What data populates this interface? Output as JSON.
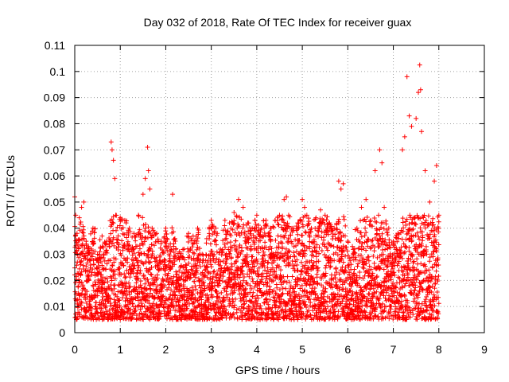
{
  "chart_data": {
    "type": "scatter",
    "title": "Day 032 of 2018, Rate Of TEC Index for receiver guax",
    "xlabel": "GPS time / hours",
    "ylabel": "ROTI / TECUs",
    "xlim": [
      0,
      9
    ],
    "ylim": [
      0,
      0.11
    ],
    "xticks": [
      "0",
      "1",
      "2",
      "3",
      "4",
      "5",
      "6",
      "7",
      "8",
      "9"
    ],
    "yticks": [
      "0",
      "0.01",
      "0.02",
      "0.03",
      "0.04",
      "0.05",
      "0.06",
      "0.07",
      "0.08",
      "0.09",
      "0.1",
      "0.11"
    ],
    "grid": true,
    "marker": "+",
    "color": "#ff0000",
    "series": [
      {
        "name": "ROTI",
        "description": "Dense band of ROTI values 0.005-0.045 TECU over 0-8 h; listed points below are representative peaks and band samples",
        "x": [
          0.0,
          0.02,
          0.05,
          0.1,
          0.15,
          0.2,
          0.25,
          0.3,
          0.4,
          0.5,
          0.6,
          0.7,
          0.8,
          0.82,
          0.85,
          0.88,
          0.9,
          1.0,
          1.1,
          1.2,
          1.3,
          1.4,
          1.5,
          1.55,
          1.6,
          1.62,
          1.65,
          1.7,
          1.8,
          1.9,
          2.0,
          2.1,
          2.15,
          2.2,
          2.3,
          2.4,
          2.5,
          2.6,
          2.7,
          2.8,
          2.9,
          3.0,
          3.1,
          3.2,
          3.3,
          3.4,
          3.5,
          3.6,
          3.7,
          3.8,
          3.9,
          4.0,
          4.1,
          4.2,
          4.3,
          4.4,
          4.5,
          4.6,
          4.65,
          4.7,
          4.8,
          4.9,
          5.0,
          5.05,
          5.1,
          5.2,
          5.3,
          5.4,
          5.5,
          5.6,
          5.7,
          5.8,
          5.85,
          5.9,
          6.0,
          6.1,
          6.2,
          6.3,
          6.4,
          6.5,
          6.6,
          6.7,
          6.75,
          6.8,
          6.9,
          7.0,
          7.1,
          7.2,
          7.25,
          7.3,
          7.35,
          7.4,
          7.5,
          7.55,
          7.58,
          7.6,
          7.62,
          7.7,
          7.8,
          7.9,
          7.95,
          8.0
        ],
        "y": [
          0.052,
          0.045,
          0.038,
          0.044,
          0.048,
          0.05,
          0.035,
          0.033,
          0.04,
          0.03,
          0.037,
          0.035,
          0.073,
          0.07,
          0.066,
          0.059,
          0.045,
          0.044,
          0.043,
          0.04,
          0.038,
          0.045,
          0.053,
          0.059,
          0.071,
          0.062,
          0.055,
          0.04,
          0.038,
          0.035,
          0.04,
          0.034,
          0.053,
          0.036,
          0.031,
          0.032,
          0.038,
          0.037,
          0.04,
          0.03,
          0.036,
          0.043,
          0.04,
          0.032,
          0.043,
          0.042,
          0.046,
          0.051,
          0.048,
          0.042,
          0.04,
          0.045,
          0.04,
          0.043,
          0.04,
          0.043,
          0.045,
          0.051,
          0.052,
          0.045,
          0.04,
          0.042,
          0.051,
          0.048,
          0.045,
          0.04,
          0.044,
          0.047,
          0.045,
          0.042,
          0.04,
          0.058,
          0.055,
          0.057,
          0.035,
          0.033,
          0.04,
          0.048,
          0.051,
          0.043,
          0.062,
          0.07,
          0.065,
          0.048,
          0.04,
          0.035,
          0.038,
          0.07,
          0.075,
          0.098,
          0.083,
          0.079,
          0.082,
          0.092,
          0.1025,
          0.093,
          0.077,
          0.062,
          0.05,
          0.058,
          0.064,
          0.045
        ]
      }
    ]
  }
}
